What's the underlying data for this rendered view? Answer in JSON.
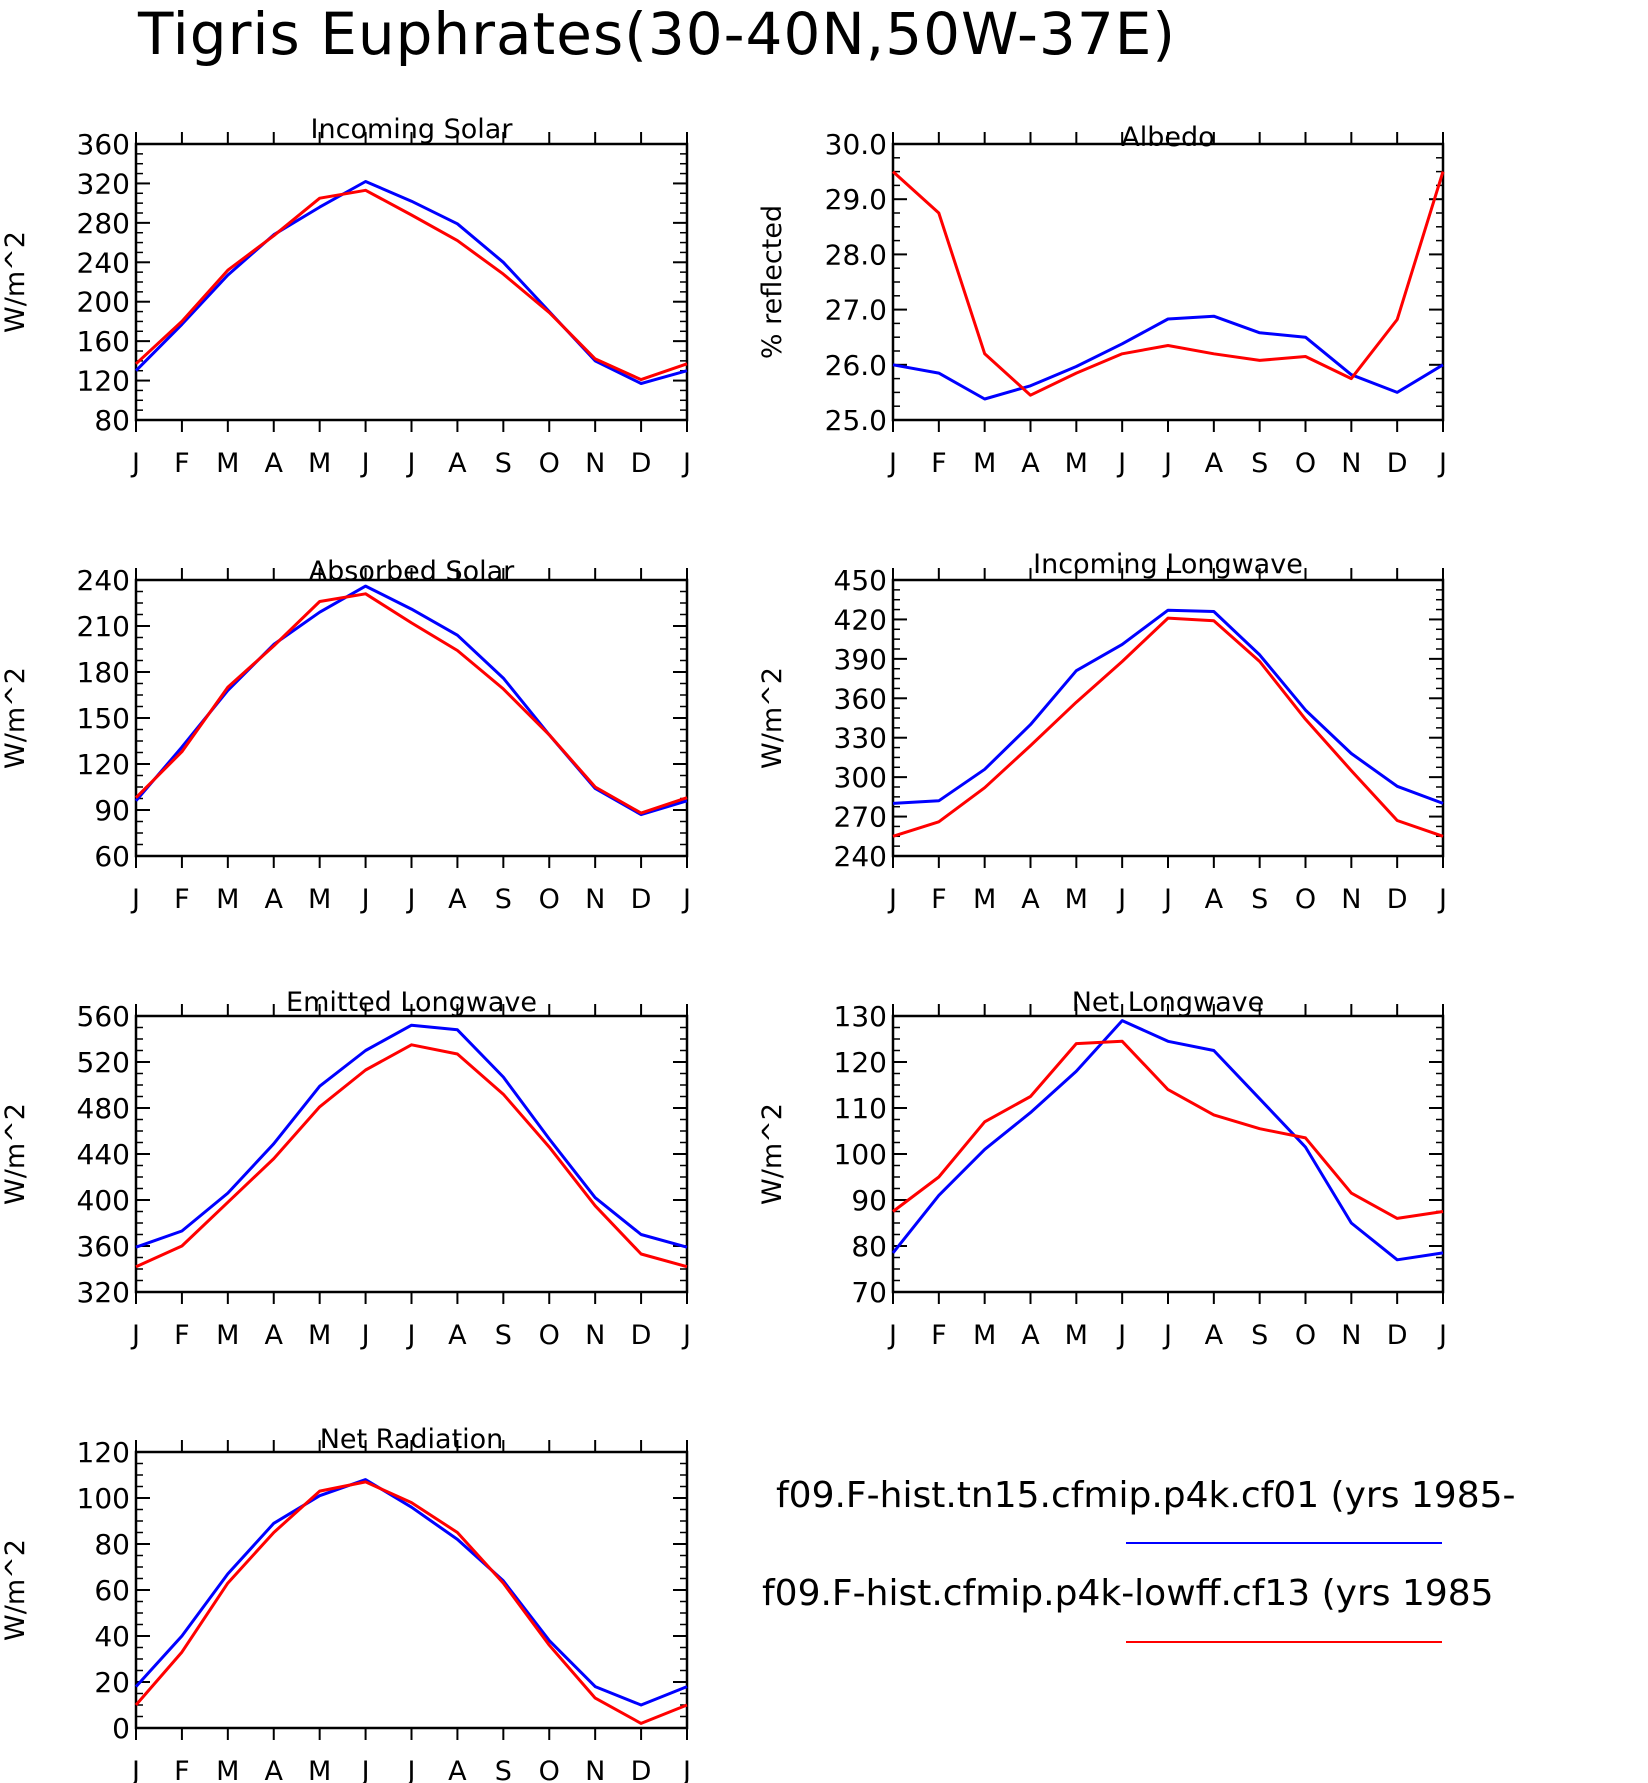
{
  "figure": {
    "title": "Tigris Euphrates(30-40N,50W-37E)"
  },
  "legend": {
    "entries": [
      {
        "label": "f09.F-hist.tn15.cfmip.p4k.cf01 (yrs 1985-",
        "color": "#0000ff"
      },
      {
        "label": "f09.F-hist.cfmip.p4k-lowff.cf13 (yrs 1985",
        "color": "#ff0000"
      }
    ]
  },
  "chart_data": [
    {
      "type": "line",
      "title": "Incoming Solar",
      "xlabel": "",
      "ylabel": "W/m^2",
      "categories": [
        "J",
        "F",
        "M",
        "A",
        "M",
        "J",
        "J",
        "A",
        "S",
        "O",
        "N",
        "D",
        "J"
      ],
      "ylim": [
        80,
        360
      ],
      "yticks": [
        80,
        120,
        160,
        200,
        240,
        280,
        320,
        360
      ],
      "ytick_labels": [
        "80",
        "120",
        "160",
        "200",
        "240",
        "280",
        "320",
        "360"
      ],
      "grid": false,
      "series": [
        {
          "color": "#0000ff",
          "values": [
            130,
            177,
            227,
            268,
            296,
            322,
            302,
            279,
            240,
            190,
            140,
            117,
            130
          ]
        },
        {
          "color": "#ff0000",
          "values": [
            137,
            180,
            232,
            267,
            305,
            313,
            288,
            262,
            228,
            189,
            142,
            121,
            137
          ]
        }
      ]
    },
    {
      "type": "line",
      "title": "Albedo",
      "xlabel": "",
      "ylabel": "% reflected",
      "categories": [
        "J",
        "F",
        "M",
        "A",
        "M",
        "J",
        "J",
        "A",
        "S",
        "O",
        "N",
        "D",
        "J"
      ],
      "ylim": [
        25.0,
        30.0
      ],
      "yticks": [
        25,
        26,
        27,
        28,
        29,
        30
      ],
      "ytick_labels": [
        "25.0",
        "26.0",
        "27.0",
        "28.0",
        "29.0",
        "30.0"
      ],
      "grid": false,
      "series": [
        {
          "color": "#0000ff",
          "values": [
            26.0,
            25.85,
            25.38,
            25.62,
            25.97,
            26.38,
            26.83,
            26.88,
            26.58,
            26.5,
            25.82,
            25.5,
            26.0
          ]
        },
        {
          "color": "#ff0000",
          "values": [
            29.5,
            28.75,
            26.2,
            25.45,
            25.85,
            26.2,
            26.35,
            26.2,
            26.08,
            26.15,
            25.75,
            26.82,
            29.5
          ]
        }
      ]
    },
    {
      "type": "line",
      "title": "Absorbed Solar",
      "xlabel": "",
      "ylabel": "W/m^2",
      "categories": [
        "J",
        "F",
        "M",
        "A",
        "M",
        "J",
        "J",
        "A",
        "S",
        "O",
        "N",
        "D",
        "J"
      ],
      "ylim": [
        60,
        240
      ],
      "yticks": [
        60,
        90,
        120,
        150,
        180,
        210,
        240
      ],
      "ytick_labels": [
        "60",
        "90",
        "120",
        "150",
        "180",
        "210",
        "240"
      ],
      "grid": false,
      "series": [
        {
          "color": "#0000ff",
          "values": [
            96,
            131,
            168,
            198,
            219,
            236,
            221,
            204,
            176,
            139,
            104,
            87,
            96
          ]
        },
        {
          "color": "#ff0000",
          "values": [
            98,
            128,
            170,
            197,
            226,
            231,
            212,
            194,
            169,
            139,
            105,
            88,
            98
          ]
        }
      ]
    },
    {
      "type": "line",
      "title": "Incoming Longwave",
      "xlabel": "",
      "ylabel": "W/m^2",
      "categories": [
        "J",
        "F",
        "M",
        "A",
        "M",
        "J",
        "J",
        "A",
        "S",
        "O",
        "N",
        "D",
        "J"
      ],
      "ylim": [
        240,
        450
      ],
      "yticks": [
        240,
        270,
        300,
        330,
        360,
        390,
        420,
        450
      ],
      "ytick_labels": [
        "240",
        "270",
        "300",
        "330",
        "360",
        "390",
        "420",
        "450"
      ],
      "grid": false,
      "series": [
        {
          "color": "#0000ff",
          "values": [
            280,
            282,
            306,
            340,
            381,
            401,
            427,
            426,
            393,
            351,
            318,
            293,
            280
          ]
        },
        {
          "color": "#ff0000",
          "values": [
            255,
            266,
            292,
            324,
            357,
            388,
            421,
            419,
            388,
            344,
            305,
            267,
            255
          ]
        }
      ]
    },
    {
      "type": "line",
      "title": "Emitted Longwave",
      "xlabel": "",
      "ylabel": "W/m^2",
      "categories": [
        "J",
        "F",
        "M",
        "A",
        "M",
        "J",
        "J",
        "A",
        "S",
        "O",
        "N",
        "D",
        "J"
      ],
      "ylim": [
        320,
        560
      ],
      "yticks": [
        320,
        360,
        400,
        440,
        480,
        520,
        560
      ],
      "ytick_labels": [
        "320",
        "360",
        "400",
        "440",
        "480",
        "520",
        "560"
      ],
      "grid": false,
      "series": [
        {
          "color": "#0000ff",
          "values": [
            359,
            373,
            406,
            449,
            499,
            530,
            552,
            548,
            507,
            453,
            402,
            370,
            359
          ]
        },
        {
          "color": "#ff0000",
          "values": [
            342,
            360,
            398,
            436,
            481,
            513,
            535,
            527,
            492,
            446,
            395,
            353,
            342
          ]
        }
      ]
    },
    {
      "type": "line",
      "title": "Net Longwave",
      "xlabel": "",
      "ylabel": "W/m^2",
      "categories": [
        "J",
        "F",
        "M",
        "A",
        "M",
        "J",
        "J",
        "A",
        "S",
        "O",
        "N",
        "D",
        "J"
      ],
      "ylim": [
        70,
        130
      ],
      "yticks": [
        70,
        80,
        90,
        100,
        110,
        120,
        130
      ],
      "ytick_labels": [
        "70",
        "80",
        "90",
        "100",
        "110",
        "120",
        "130"
      ],
      "grid": false,
      "series": [
        {
          "color": "#0000ff",
          "values": [
            78.5,
            91,
            101,
            109,
            118,
            129,
            124.5,
            122.5,
            112,
            101.5,
            85,
            77,
            78.5
          ]
        },
        {
          "color": "#ff0000",
          "values": [
            87.5,
            95,
            107,
            112.5,
            124,
            124.5,
            114,
            108.5,
            105.5,
            103.5,
            91.5,
            86,
            87.5
          ]
        }
      ]
    },
    {
      "type": "line",
      "title": "Net Radiation",
      "xlabel": "",
      "ylabel": "W/m^2",
      "categories": [
        "J",
        "F",
        "M",
        "A",
        "M",
        "J",
        "J",
        "A",
        "S",
        "O",
        "N",
        "D",
        "J"
      ],
      "ylim": [
        0,
        120
      ],
      "yticks": [
        0,
        20,
        40,
        60,
        80,
        100,
        120
      ],
      "ytick_labels": [
        "0",
        "20",
        "40",
        "60",
        "80",
        "100",
        "120"
      ],
      "grid": false,
      "series": [
        {
          "color": "#0000ff",
          "values": [
            18,
            40,
            67,
            89,
            101,
            108,
            96,
            82,
            64,
            38,
            18,
            10,
            18
          ]
        },
        {
          "color": "#ff0000",
          "values": [
            10,
            33,
            63,
            85,
            103,
            107,
            98,
            85,
            63,
            36,
            13,
            2,
            10
          ]
        }
      ]
    }
  ]
}
